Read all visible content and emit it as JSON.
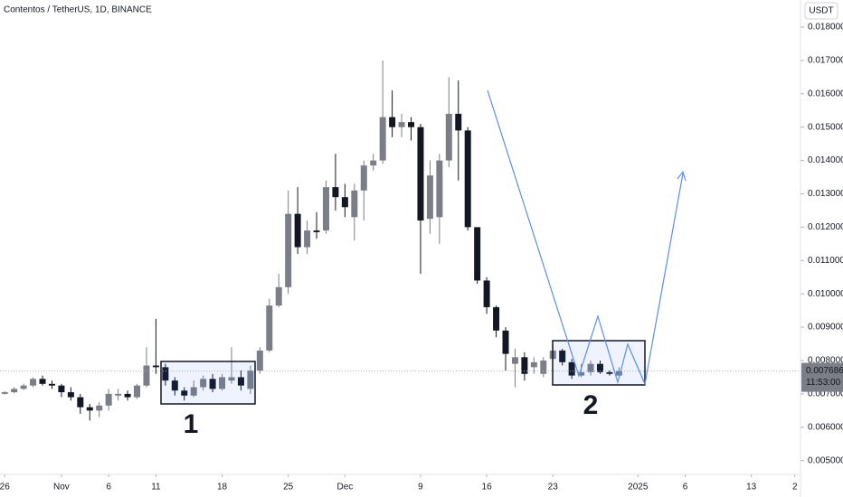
{
  "chart_data": {
    "type": "candlestick",
    "title": "Contentos / TetherUS, 1D, BINANCE",
    "currency": "USDT",
    "up_color": "#7b7e87",
    "down_color": "#131722",
    "x": [
      0,
      1,
      2,
      3,
      4,
      5,
      6,
      7,
      8,
      9,
      10,
      11,
      12,
      13,
      14,
      15,
      16,
      17,
      18,
      19,
      20,
      21,
      22,
      23,
      24,
      25,
      26,
      27,
      28,
      29,
      30,
      31,
      32,
      33,
      34,
      35,
      36,
      37,
      38,
      39,
      40,
      41,
      42,
      43,
      44,
      45,
      46,
      47,
      48,
      49,
      50,
      51,
      52,
      53,
      54,
      55,
      56,
      57,
      58,
      59,
      60,
      61,
      62,
      63,
      64,
      65
    ],
    "open": [
      0.007,
      0.00705,
      0.00715,
      0.00725,
      0.00745,
      0.0073,
      0.00725,
      0.00705,
      0.0069,
      0.0066,
      0.0065,
      0.00665,
      0.00695,
      0.007,
      0.0069,
      0.00725,
      0.00785,
      0.0078,
      0.0074,
      0.0071,
      0.00695,
      0.0072,
      0.00745,
      0.00715,
      0.0074,
      0.0075,
      0.00715,
      0.0077,
      0.0083,
      0.00965,
      0.0102,
      0.0124,
      0.0114,
      0.0119,
      0.0119,
      0.0132,
      0.0129,
      0.0123,
      0.0131,
      0.01385,
      0.014,
      0.0153,
      0.015,
      0.01515,
      0.015,
      0.01225,
      0.0123,
      0.014,
      0.0154,
      0.0149,
      0.012,
      0.0104,
      0.0096,
      0.0089,
      0.0079,
      0.0081,
      0.0078,
      0.0076,
      0.00805,
      0.0083,
      0.00795,
      0.00755,
      0.00765,
      0.0079,
      0.00765,
      0.00755
    ],
    "high": [
      0.00708,
      0.0072,
      0.0073,
      0.0075,
      0.00755,
      0.0074,
      0.0073,
      0.0072,
      0.007,
      0.0067,
      0.00675,
      0.00715,
      0.00715,
      0.0071,
      0.0073,
      0.0084,
      0.00925,
      0.0079,
      0.0075,
      0.0072,
      0.0074,
      0.00755,
      0.0076,
      0.0076,
      0.0084,
      0.0077,
      0.00785,
      0.0084,
      0.00985,
      0.0106,
      0.0131,
      0.0132,
      0.0122,
      0.01245,
      0.0134,
      0.0142,
      0.0133,
      0.0133,
      0.014,
      0.0142,
      0.017,
      0.0161,
      0.0154,
      0.0153,
      0.0151,
      0.014,
      0.0142,
      0.0165,
      0.0164,
      0.015,
      0.012,
      0.0105,
      0.00965,
      0.009,
      0.00835,
      0.00825,
      0.0081,
      0.0081,
      0.00845,
      0.00835,
      0.00805,
      0.0079,
      0.008,
      0.008,
      0.0077,
      0.0078
    ],
    "low": [
      0.00698,
      0.00702,
      0.00712,
      0.0072,
      0.00725,
      0.00715,
      0.0069,
      0.0068,
      0.0064,
      0.0062,
      0.0063,
      0.0065,
      0.0068,
      0.0068,
      0.00685,
      0.0072,
      0.0076,
      0.00725,
      0.00695,
      0.0068,
      0.0069,
      0.0071,
      0.00705,
      0.0071,
      0.0073,
      0.0071,
      0.007,
      0.0076,
      0.00825,
      0.0096,
      0.01,
      0.0112,
      0.0112,
      0.01165,
      0.0118,
      0.0125,
      0.0123,
      0.0116,
      0.0122,
      0.0137,
      0.0139,
      0.0147,
      0.0147,
      0.0146,
      0.0106,
      0.0118,
      0.0115,
      0.0138,
      0.0134,
      0.0119,
      0.0103,
      0.0094,
      0.0087,
      0.0077,
      0.0072,
      0.0074,
      0.0076,
      0.0075,
      0.008,
      0.00785,
      0.00745,
      0.0075,
      0.00755,
      0.0076,
      0.00755,
      0.0075
    ],
    "close": [
      0.00705,
      0.00715,
      0.00725,
      0.00745,
      0.0073,
      0.00725,
      0.00705,
      0.0069,
      0.0066,
      0.0065,
      0.00665,
      0.007,
      0.007,
      0.0069,
      0.00725,
      0.00785,
      0.0078,
      0.0074,
      0.0071,
      0.00695,
      0.0072,
      0.00745,
      0.00715,
      0.0075,
      0.0075,
      0.00725,
      0.0077,
      0.0083,
      0.00965,
      0.0102,
      0.0124,
      0.0114,
      0.0119,
      0.01185,
      0.0132,
      0.0129,
      0.0126,
      0.0131,
      0.01385,
      0.014,
      0.0153,
      0.015,
      0.01515,
      0.015,
      0.0122,
      0.01355,
      0.014,
      0.0154,
      0.0149,
      0.012,
      0.0104,
      0.0096,
      0.0089,
      0.0082,
      0.0081,
      0.0076,
      0.00795,
      0.008,
      0.0083,
      0.00795,
      0.00755,
      0.00765,
      0.0079,
      0.00765,
      0.0076,
      0.00769
    ],
    "last_price": 0.007686,
    "countdown": "11:53:00",
    "xlim": [
      -0.5,
      84.2
    ],
    "ylim": [
      0.004585,
      0.018813
    ],
    "xticks": [
      {
        "value": 0,
        "label": "26"
      },
      {
        "value": 6,
        "label": "Nov"
      },
      {
        "value": 11,
        "label": "6"
      },
      {
        "value": 16,
        "label": "11"
      },
      {
        "value": 23,
        "label": "18"
      },
      {
        "value": 30,
        "label": "25"
      },
      {
        "value": 36,
        "label": "Dec"
      },
      {
        "value": 44,
        "label": "9"
      },
      {
        "value": 51,
        "label": "16"
      },
      {
        "value": 58,
        "label": "23"
      },
      {
        "value": 67,
        "label": "2025"
      },
      {
        "value": 72,
        "label": "6"
      },
      {
        "value": 79,
        "label": "13"
      },
      {
        "value": 83.6,
        "label": "2"
      }
    ],
    "yticks": [
      {
        "value": 0.005,
        "label": "0.005000"
      },
      {
        "value": 0.006,
        "label": "0.006000"
      },
      {
        "value": 0.007,
        "label": "0.007000"
      },
      {
        "value": 0.008,
        "label": "0.008000"
      },
      {
        "value": 0.009,
        "label": "0.009000"
      },
      {
        "value": 0.01,
        "label": "0.010000"
      },
      {
        "value": 0.011,
        "label": "0.011000"
      },
      {
        "value": 0.012,
        "label": "0.012000"
      },
      {
        "value": 0.013,
        "label": "0.013000"
      },
      {
        "value": 0.014,
        "label": "0.014000"
      },
      {
        "value": 0.015,
        "label": "0.015000"
      },
      {
        "value": 0.016,
        "label": "0.016000"
      },
      {
        "value": 0.017,
        "label": "0.017000"
      },
      {
        "value": 0.018,
        "label": "0.018000"
      }
    ],
    "annotations": [
      "1",
      "2"
    ]
  }
}
